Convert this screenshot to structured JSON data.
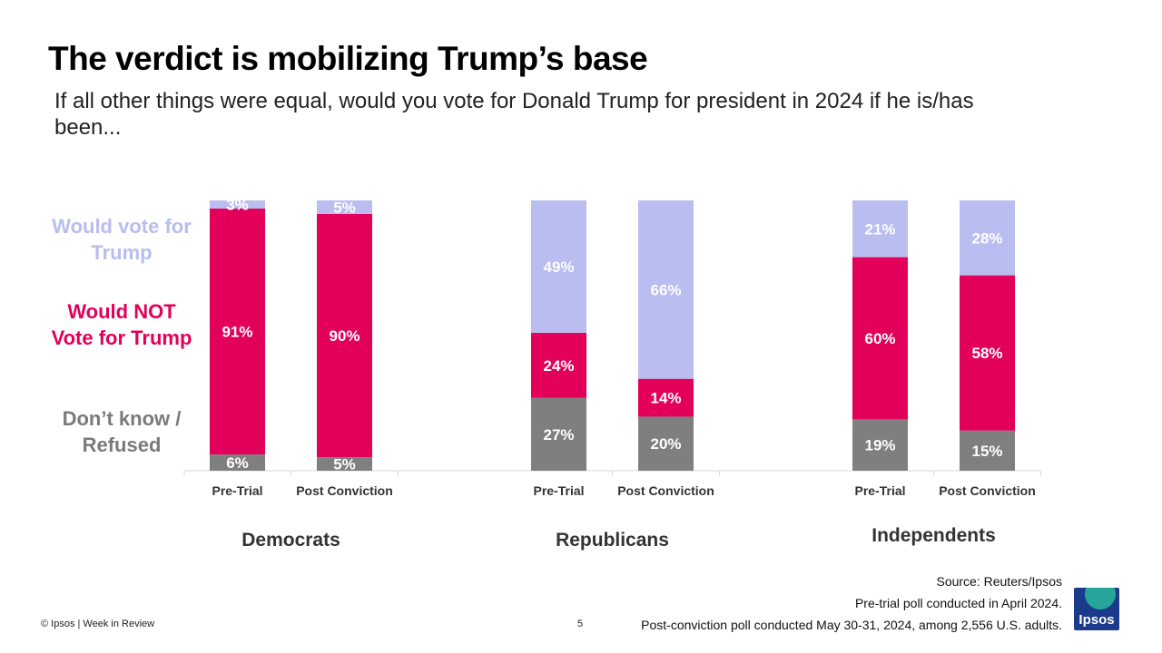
{
  "slide": {
    "title": "The verdict is mobilizing Trump’s base",
    "subtitle": "If all other things were equal, would you vote for Donald Trump for president in 2024 if he is/has been..."
  },
  "legend": {
    "would_vote": "Would vote for Trump",
    "would_not": "Would NOT Vote for Trump",
    "dont_know": "Don’t know / Refused"
  },
  "colors": {
    "would_vote": "#B9BDEF",
    "would_not": "#E2005A",
    "dont_know": "#7F7F7F",
    "axis": "#D9D9D9",
    "logo_bg": "#1B3A8A",
    "logo_accent": "#26A69A"
  },
  "chart_data": {
    "type": "bar",
    "stacked": true,
    "unit": "%",
    "groups": [
      "Democrats",
      "Republicans",
      "Independents"
    ],
    "categories": [
      "Pre-Trial",
      "Post Conviction"
    ],
    "series": [
      {
        "name": "Don’t know / Refused",
        "key": "dont_know",
        "values": [
          [
            6,
            5
          ],
          [
            27,
            20
          ],
          [
            19,
            15
          ]
        ]
      },
      {
        "name": "Would NOT Vote for Trump",
        "key": "would_not",
        "values": [
          [
            91,
            90
          ],
          [
            24,
            14
          ],
          [
            60,
            58
          ]
        ]
      },
      {
        "name": "Would vote for Trump",
        "key": "would_vote",
        "values": [
          [
            3,
            5
          ],
          [
            49,
            66
          ],
          [
            21,
            28
          ]
        ]
      }
    ],
    "ylim": [
      0,
      100
    ],
    "grid": false,
    "legend_position": "left"
  },
  "footer": {
    "copyright": "© Ipsos | Week in Review",
    "page": "5",
    "source_1": "Source: Reuters/Ipsos",
    "source_2": "Pre-trial poll conducted in April 2024.",
    "source_3": "Post-conviction poll conducted May 30-31, 2024, among 2,556 U.S. adults.",
    "logo_text": "Ipsos"
  }
}
